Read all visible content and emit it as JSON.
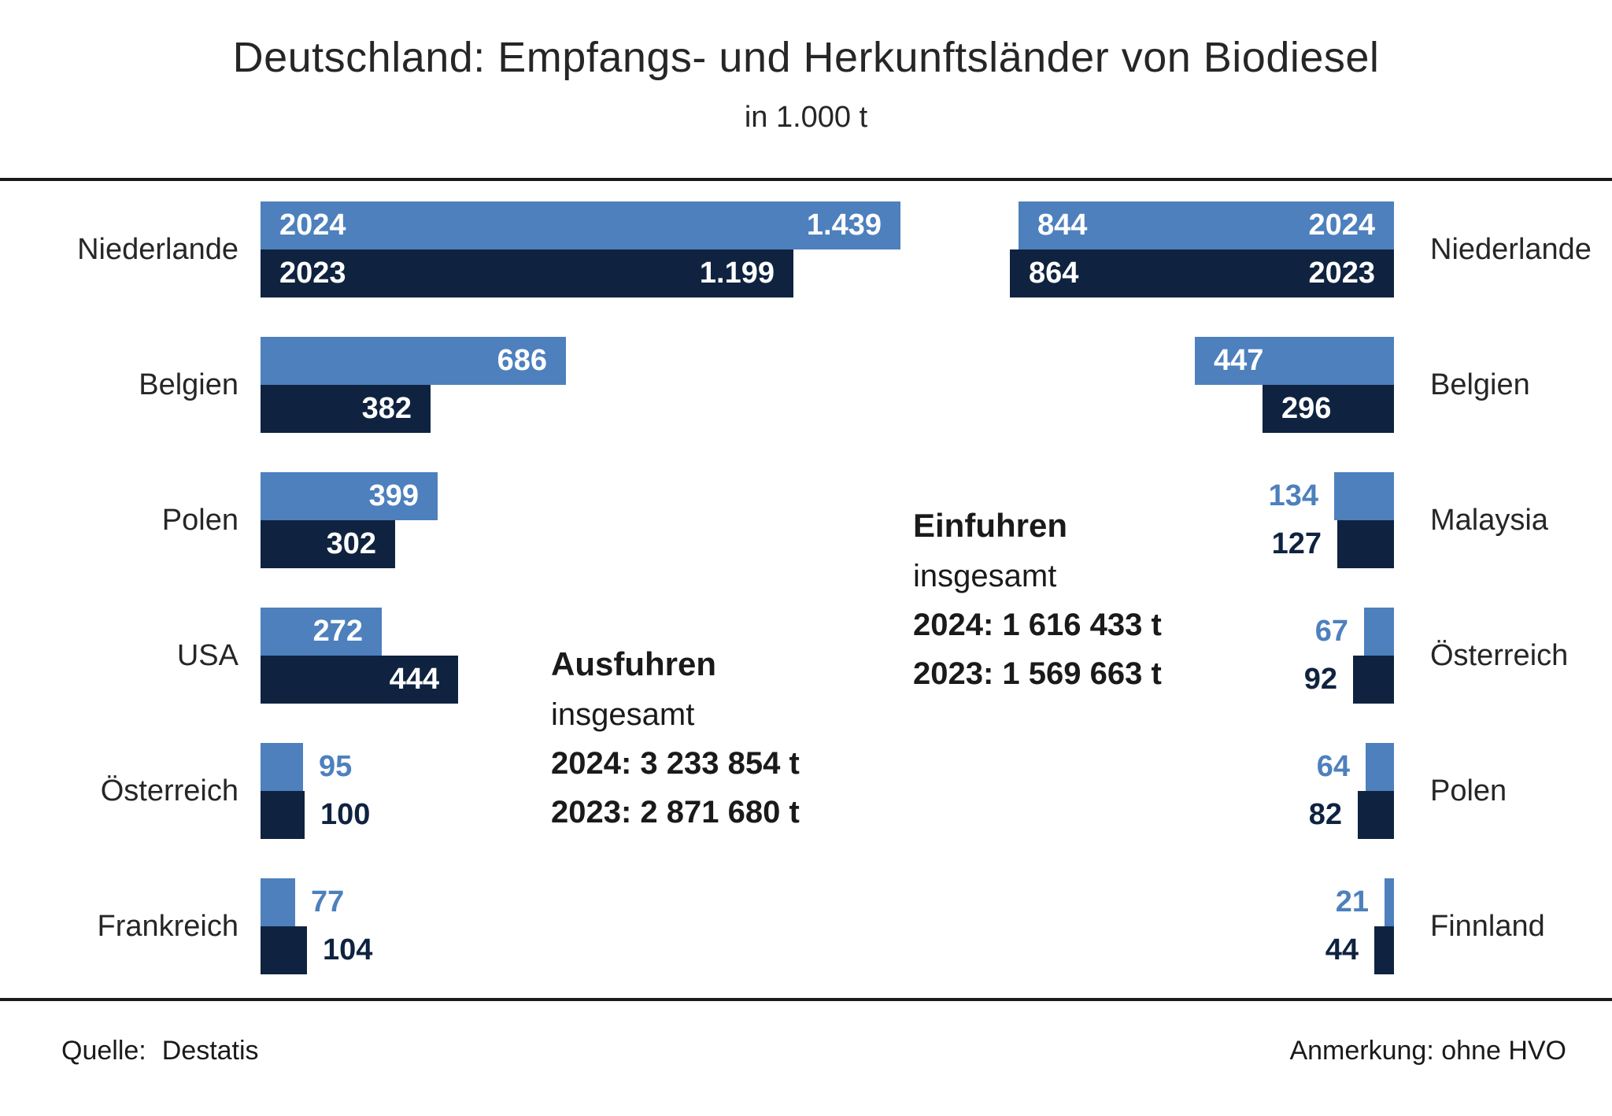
{
  "title": "Deutschland: Empfangs- und Herkunftsländer von Biodiesel",
  "subtitle": "in 1.000 t",
  "colors": {
    "series_2024": "#4d80bd",
    "series_2023": "#0f2340",
    "text": "#262626",
    "rule": "#1a1a1a",
    "value_inside": "#ffffff"
  },
  "chart_data": [
    {
      "type": "bar",
      "orientation": "horizontal",
      "direction": "left-to-right",
      "title": "Ausfuhren",
      "subtitle": "insgesamt",
      "totals": [
        "2024: 3 233 854 t",
        "2023: 2 871 680 t"
      ],
      "unit": "1.000 t",
      "categories": [
        "Niederlande",
        "Belgien",
        "Polen",
        "USA",
        "Österreich",
        "Frankreich"
      ],
      "series": [
        {
          "name": "2024",
          "values": [
            1439,
            686,
            399,
            272,
            95,
            77
          ],
          "labels": [
            "1.439",
            "686",
            "399",
            "272",
            "95",
            "77"
          ]
        },
        {
          "name": "2023",
          "values": [
            1199,
            382,
            302,
            444,
            100,
            104
          ],
          "labels": [
            "1.199",
            "382",
            "302",
            "444",
            "100",
            "104"
          ]
        }
      ],
      "xlim": [
        0,
        1480
      ],
      "grid": false,
      "legend": "year labels inside first row bars"
    },
    {
      "type": "bar",
      "orientation": "horizontal",
      "direction": "right-to-left",
      "title": "Einfuhren",
      "subtitle": "insgesamt",
      "totals": [
        "2024: 1 616 433 t",
        "2023: 1 569 663 t"
      ],
      "unit": "1.000 t",
      "categories": [
        "Niederlande",
        "Belgien",
        "Malaysia",
        "Österreich",
        "Polen",
        "Finnland"
      ],
      "series": [
        {
          "name": "2024",
          "values": [
            844,
            447,
            134,
            67,
            64,
            21
          ],
          "labels": [
            "844",
            "447",
            "134",
            "67",
            "64",
            "21"
          ]
        },
        {
          "name": "2023",
          "values": [
            864,
            296,
            127,
            92,
            82,
            44
          ],
          "labels": [
            "864",
            "296",
            "127",
            "92",
            "82",
            "44"
          ]
        }
      ],
      "xlim": [
        0,
        1480
      ],
      "grid": false,
      "legend": "year labels inside first row bars"
    }
  ],
  "footer": {
    "source_label": "Quelle:",
    "source_value": "Destatis",
    "note": "Anmerkung: ohne HVO"
  }
}
